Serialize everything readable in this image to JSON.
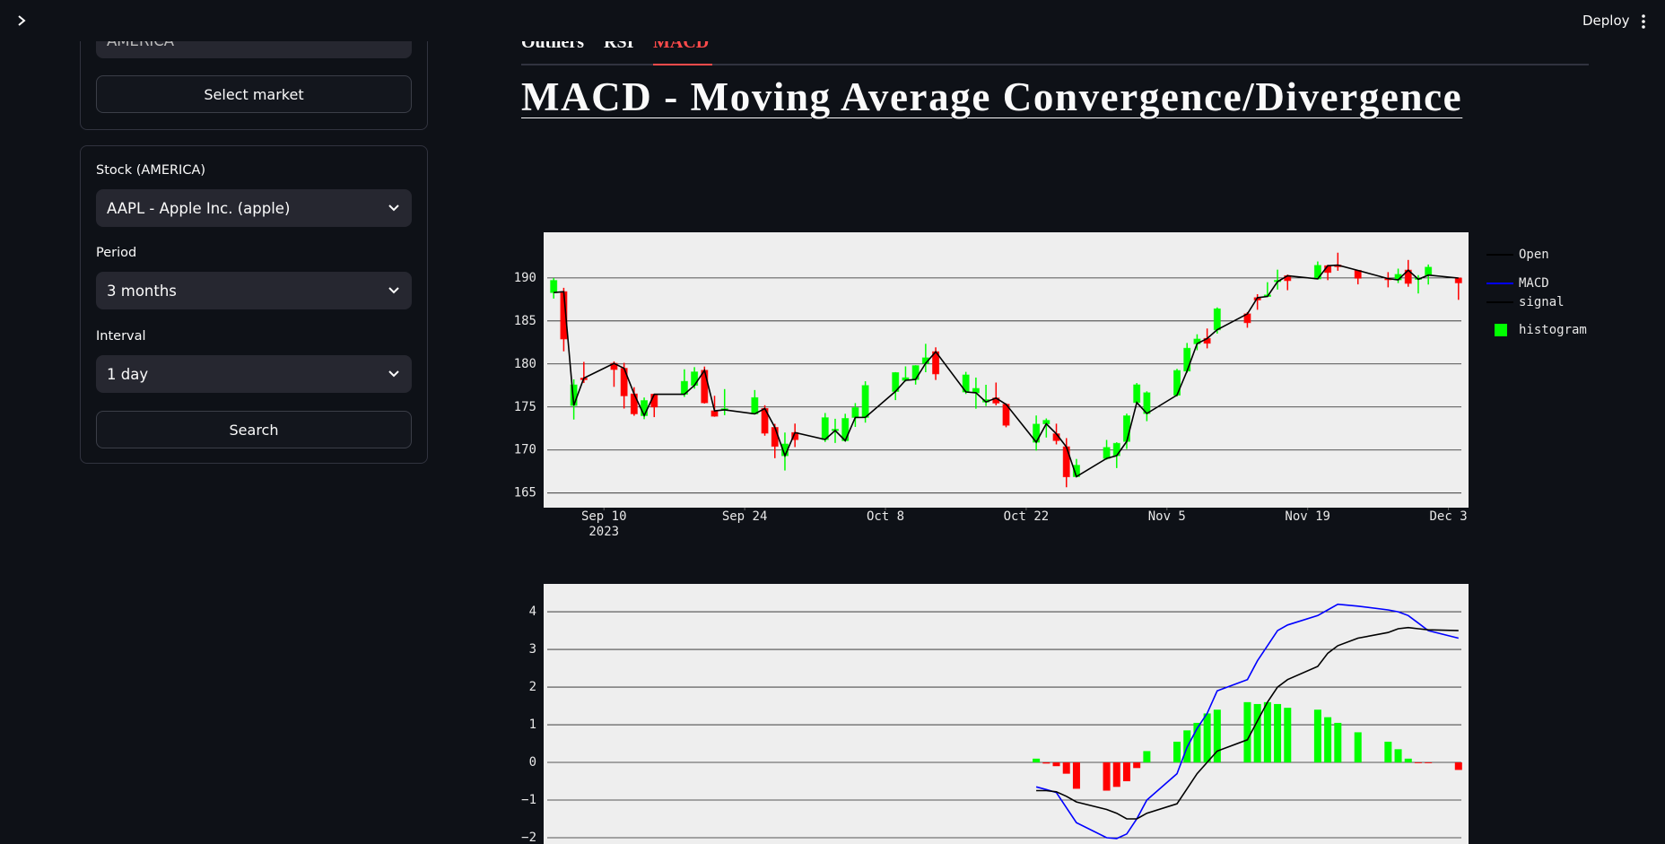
{
  "header": {
    "deploy": "Deploy"
  },
  "sidebar": {
    "market_input": "AMERICA",
    "select_market_button": "Select market",
    "stock_label": "Stock (AMERICA)",
    "stock_value": "AAPL - Apple Inc. (apple)",
    "period_label": "Period",
    "period_value": "3 months",
    "interval_label": "Interval",
    "interval_value": "1 day",
    "search_button": "Search"
  },
  "tabs": [
    "Outliers",
    "RSI",
    "MACD"
  ],
  "title": "MACD - Moving Average Convergence/Divergence",
  "chart_data": [
    {
      "type": "candlestick",
      "x": [
        "2023-09-05",
        "2023-09-06",
        "2023-09-07",
        "2023-09-08",
        "2023-09-11",
        "2023-09-12",
        "2023-09-13",
        "2023-09-14",
        "2023-09-15",
        "2023-09-18",
        "2023-09-19",
        "2023-09-20",
        "2023-09-21",
        "2023-09-22",
        "2023-09-25",
        "2023-09-26",
        "2023-09-27",
        "2023-09-28",
        "2023-09-29",
        "2023-10-02",
        "2023-10-03",
        "2023-10-04",
        "2023-10-05",
        "2023-10-06",
        "2023-10-09",
        "2023-10-10",
        "2023-10-11",
        "2023-10-12",
        "2023-10-13",
        "2023-10-16",
        "2023-10-17",
        "2023-10-18",
        "2023-10-19",
        "2023-10-20",
        "2023-10-23",
        "2023-10-24",
        "2023-10-25",
        "2023-10-26",
        "2023-10-27",
        "2023-10-30",
        "2023-10-31",
        "2023-11-01",
        "2023-11-02",
        "2023-11-03",
        "2023-11-06",
        "2023-11-07",
        "2023-11-08",
        "2023-11-09",
        "2023-11-10",
        "2023-11-13",
        "2023-11-14",
        "2023-11-15",
        "2023-11-16",
        "2023-11-17",
        "2023-11-20",
        "2023-11-21",
        "2023-11-22",
        "2023-11-24",
        "2023-11-27",
        "2023-11-28",
        "2023-11-29",
        "2023-11-30",
        "2023-12-01",
        "2023-12-04"
      ],
      "open": [
        188.3,
        188.4,
        175.18,
        178.35,
        180.07,
        179.49,
        176.51,
        174.0,
        176.48,
        176.48,
        177.52,
        179.26,
        174.55,
        174.67,
        174.2,
        174.82,
        172.62,
        169.34,
        172.02,
        171.22,
        172.26,
        171.09,
        173.79,
        173.8,
        176.81,
        178.1,
        178.2,
        180.07,
        181.42,
        176.75,
        176.65,
        175.58,
        176.04,
        175.31,
        170.91,
        173.05,
        171.88,
        170.37,
        166.91,
        169.02,
        169.35,
        171.0,
        175.52,
        174.24,
        176.38,
        179.18,
        182.35,
        182.96,
        183.97,
        185.82,
        187.7,
        187.85,
        189.57,
        190.25,
        189.89,
        191.41,
        191.49,
        190.87,
        189.92,
        189.78,
        190.9,
        189.84,
        190.33,
        189.98
      ],
      "high": [
        189.98,
        188.85,
        178.21,
        180.24,
        180.3,
        180.13,
        177.3,
        176.1,
        176.5,
        179.38,
        179.63,
        179.7,
        176.3,
        177.08,
        176.97,
        175.2,
        173.04,
        172.03,
        173.07,
        174.3,
        173.63,
        174.21,
        175.45,
        177.99,
        179.05,
        179.72,
        179.85,
        182.34,
        181.93,
        179.08,
        178.42,
        177.58,
        177.84,
        175.42,
        174.01,
        173.67,
        173.06,
        171.38,
        168.96,
        171.17,
        170.9,
        174.23,
        177.78,
        176.82,
        179.43,
        182.44,
        183.45,
        184.12,
        186.57,
        186.03,
        188.11,
        189.5,
        190.96,
        190.38,
        191.91,
        191.52,
        192.93,
        190.9,
        190.67,
        191.08,
        192.09,
        190.32,
        191.56,
        190.05
      ],
      "low": [
        187.6,
        181.47,
        173.54,
        177.79,
        177.34,
        174.82,
        173.98,
        173.58,
        173.82,
        176.17,
        177.13,
        175.4,
        173.86,
        174.05,
        174.15,
        171.66,
        169.05,
        167.62,
        170.34,
        170.93,
        170.82,
        170.97,
        172.68,
        173.18,
        175.8,
        177.95,
        177.6,
        179.04,
        178.14,
        176.51,
        174.8,
        175.11,
        175.19,
        172.64,
        169.93,
        171.45,
        170.65,
        165.67,
        166.83,
        168.87,
        167.9,
        170.12,
        175.46,
        173.35,
        176.21,
        178.97,
        181.59,
        181.81,
        183.53,
        184.21,
        186.3,
        187.78,
        188.65,
        188.57,
        189.88,
        189.74,
        190.83,
        189.25,
        188.9,
        189.4,
        188.97,
        188.19,
        189.23,
        187.45
      ],
      "close": [
        189.7,
        182.91,
        177.56,
        178.18,
        179.36,
        176.3,
        174.21,
        175.74,
        175.01,
        177.97,
        179.07,
        175.49,
        173.93,
        174.79,
        176.08,
        171.96,
        170.43,
        170.69,
        171.21,
        173.75,
        172.4,
        173.66,
        174.91,
        177.49,
        178.99,
        178.39,
        179.8,
        180.71,
        178.85,
        178.72,
        177.15,
        175.84,
        175.46,
        172.88,
        173.0,
        173.44,
        171.1,
        166.89,
        168.22,
        170.29,
        170.77,
        173.97,
        177.57,
        176.65,
        179.23,
        181.82,
        182.89,
        182.41,
        186.4,
        184.8,
        187.44,
        188.01,
        189.71,
        189.69,
        191.45,
        190.64,
        191.31,
        189.97,
        189.79,
        190.4,
        189.37,
        189.95,
        191.24,
        189.43
      ],
      "increasing_color": "#00ff00",
      "decreasing_color": "#ff0000",
      "line": {
        "name": "Open",
        "color": "#000000"
      },
      "xlim": [
        "2023-09-04",
        "2023-12-05"
      ],
      "xticks": [
        {
          "value": "2023-09-10",
          "label": "Sep 10"
        },
        {
          "value": "2023-09-24",
          "label": "Sep 24"
        },
        {
          "value": "2023-10-08",
          "label": "Oct 8"
        },
        {
          "value": "2023-10-22",
          "label": "Oct 22"
        },
        {
          "value": "2023-11-05",
          "label": "Nov 5"
        },
        {
          "value": "2023-11-19",
          "label": "Nov 19"
        },
        {
          "value": "2023-12-03",
          "label": "Dec 3"
        }
      ],
      "x_year_label": "2023",
      "ylim": [
        163.3,
        195.3
      ],
      "yticks": [
        165,
        170,
        175,
        180,
        185,
        190
      ],
      "grid": true
    },
    {
      "type": "macd",
      "x": [
        "2023-10-23",
        "2023-10-24",
        "2023-10-25",
        "2023-10-26",
        "2023-10-27",
        "2023-10-30",
        "2023-10-31",
        "2023-11-01",
        "2023-11-02",
        "2023-11-03",
        "2023-11-06",
        "2023-11-07",
        "2023-11-08",
        "2023-11-09",
        "2023-11-10",
        "2023-11-13",
        "2023-11-14",
        "2023-11-15",
        "2023-11-16",
        "2023-11-17",
        "2023-11-20",
        "2023-11-21",
        "2023-11-22",
        "2023-11-24",
        "2023-11-27",
        "2023-11-28",
        "2023-11-29",
        "2023-11-30",
        "2023-12-01",
        "2023-12-04"
      ],
      "series": [
        {
          "name": "MACD",
          "type": "line",
          "color": "#0000ff",
          "values": [
            -0.65,
            -0.72,
            -0.8,
            -1.2,
            -1.6,
            -2.0,
            -2.02,
            -1.9,
            -1.5,
            -1.0,
            -0.3,
            0.4,
            0.9,
            1.3,
            1.9,
            2.2,
            2.7,
            3.1,
            3.5,
            3.65,
            3.9,
            4.05,
            4.2,
            4.15,
            4.05,
            4.0,
            3.9,
            3.7,
            3.5,
            3.3
          ]
        },
        {
          "name": "signal",
          "type": "line",
          "color": "#000000",
          "values": [
            -0.75,
            -0.75,
            -0.78,
            -0.9,
            -1.05,
            -1.25,
            -1.35,
            -1.5,
            -1.5,
            -1.35,
            -1.1,
            -0.7,
            -0.3,
            0.0,
            0.3,
            0.6,
            1.1,
            1.6,
            2.0,
            2.2,
            2.55,
            2.9,
            3.1,
            3.3,
            3.45,
            3.55,
            3.58,
            3.55,
            3.52,
            3.5
          ]
        },
        {
          "name": "histogram",
          "type": "bar",
          "color": "#00ff00",
          "negative_color": "#ff0000",
          "values": [
            0.1,
            -0.03,
            -0.1,
            -0.3,
            -0.7,
            -0.75,
            -0.65,
            -0.5,
            -0.15,
            0.3,
            0.55,
            0.85,
            1.05,
            1.3,
            1.4,
            1.6,
            1.55,
            1.6,
            1.55,
            1.45,
            1.4,
            1.2,
            1.05,
            0.8,
            0.55,
            0.35,
            0.1,
            -0.02,
            -0.02,
            -0.2
          ]
        }
      ],
      "xlim": [
        "2023-09-04",
        "2023-12-05"
      ],
      "ylim": [
        -3,
        4.74
      ],
      "yticks": [
        {
          "value": -2,
          "label": "−2"
        },
        {
          "value": -1,
          "label": "−1"
        },
        0,
        1,
        2,
        3,
        4
      ],
      "grid": true
    }
  ]
}
